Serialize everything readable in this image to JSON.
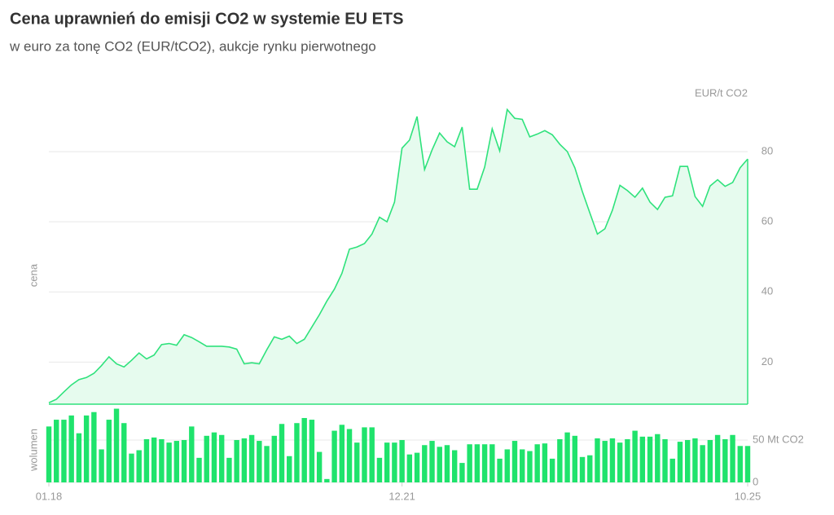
{
  "chart_data": {
    "type": "area",
    "title": "Cena uprawnień do emisji CO2 w systemie EU ETS",
    "subtitle": "w euro za tonę CO2 (EUR/tCO2), aukcje rynku pierwotnego",
    "y_unit": "EUR/t CO2",
    "y_label": "cena",
    "y2_label": "wolumen",
    "categories": [
      "01.18",
      null,
      null,
      null,
      null,
      null,
      null,
      null,
      null,
      null,
      null,
      null,
      null,
      null,
      null,
      null,
      null,
      null,
      null,
      null,
      null,
      null,
      null,
      null,
      null,
      null,
      null,
      null,
      null,
      null,
      null,
      null,
      null,
      null,
      null,
      null,
      null,
      null,
      null,
      null,
      null,
      null,
      null,
      null,
      null,
      null,
      null,
      "12.21",
      null,
      null,
      null,
      null,
      null,
      null,
      null,
      null,
      null,
      null,
      null,
      null,
      null,
      null,
      null,
      null,
      null,
      null,
      null,
      null,
      null,
      null,
      null,
      null,
      null,
      null,
      null,
      null,
      null,
      null,
      null,
      null,
      null,
      null,
      null,
      null,
      null,
      null,
      null,
      null,
      null,
      null,
      null,
      null,
      null,
      "10.25"
    ],
    "series": [
      {
        "name": "cena",
        "type": "area",
        "color": "#2fe27c",
        "fill": "#e6fbee",
        "values": [
          8.4,
          9.4,
          11.5,
          13.5,
          15,
          15.6,
          16.8,
          19,
          21.5,
          19.5,
          18.6,
          20.5,
          22.6,
          20.9,
          22,
          25,
          25.3,
          24.8,
          27.8,
          27,
          25.8,
          24.5,
          24.5,
          24.5,
          24.3,
          23.7,
          19.5,
          19.8,
          19.5,
          23.5,
          27.2,
          26.5,
          27.4,
          25.3,
          26.5,
          30,
          33.5,
          37.4,
          40.8,
          45.3,
          52.2,
          52.8,
          53.8,
          56.5,
          61.3,
          60,
          65.6,
          81,
          83.3,
          90,
          74.9,
          80.5,
          85.3,
          82.8,
          81.4,
          87,
          69.3,
          69.3,
          75.6,
          86.5,
          80.2,
          92,
          89.5,
          89.2,
          84.2,
          85,
          86,
          84.8,
          82.1,
          80,
          75.4,
          68.6,
          62.5,
          56.5,
          58,
          63.3,
          70.4,
          68.9,
          67,
          69.6,
          65.6,
          63.5,
          67,
          67.4,
          75.8,
          75.8,
          67.2,
          64.4,
          70.2,
          72,
          70.1,
          71.2,
          75.4,
          77.9
        ]
      },
      {
        "name": "wolumen",
        "type": "bar",
        "axis": "y2",
        "color": "#1fe36c",
        "values": [
          66,
          74,
          74,
          79,
          58,
          79,
          83,
          39,
          74,
          87,
          70,
          34,
          38,
          51,
          53,
          51,
          47,
          49,
          50,
          66,
          29,
          55,
          59,
          56,
          29,
          50,
          52,
          56,
          49,
          43,
          55,
          69,
          31,
          70,
          76,
          74,
          36,
          4,
          61,
          68,
          63,
          47,
          65,
          65,
          29,
          47,
          47,
          50,
          33,
          35,
          44,
          49,
          42,
          44,
          38,
          23,
          45,
          45,
          45,
          45,
          28,
          39,
          49,
          39,
          37,
          45,
          46,
          28,
          51,
          59,
          55,
          30,
          32,
          52,
          49,
          52,
          47,
          51,
          61,
          54,
          54,
          57,
          51,
          28,
          48,
          50,
          52,
          44,
          50,
          56,
          51,
          56,
          43,
          43
        ]
      }
    ],
    "ylim": [
      8,
      98
    ],
    "yticks": [
      20,
      40,
      60,
      80
    ],
    "y2lim": [
      0,
      88
    ],
    "y2ticks": [
      0,
      {
        "value": 50,
        "label": "50 Mt CO2"
      }
    ],
    "grid": true
  }
}
